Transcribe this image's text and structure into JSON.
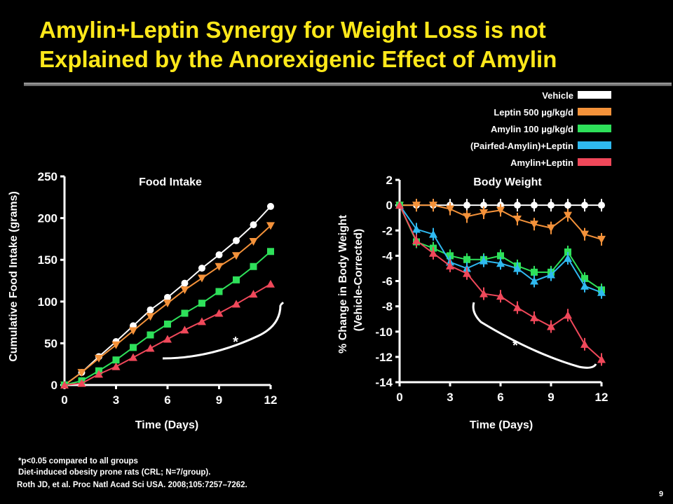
{
  "title_line1": "Amylin+Leptin Synergy for Weight Loss is not",
  "title_line2": "Explained by the Anorexigenic Effect of Amylin",
  "legend": [
    {
      "label": "Vehicle",
      "color": "#FFFFFF"
    },
    {
      "label": "Leptin 500 µg/kg/d",
      "color": "#F4923A"
    },
    {
      "label": "Amylin 100 µg/kg/d",
      "color": "#2EE05A"
    },
    {
      "label": "(Pairfed-Amylin)+Leptin",
      "color": "#2FB9F0"
    },
    {
      "label": "Amylin+Leptin",
      "color": "#F0485A"
    }
  ],
  "chart_data": [
    {
      "type": "line",
      "title": "Food Intake",
      "xlabel": "Time (Days)",
      "ylabel": "Cumulative Food Intake (grams)",
      "xlim": [
        0,
        12
      ],
      "ylim": [
        0,
        250
      ],
      "xticks": [
        "0",
        "3",
        "6",
        "9",
        "12"
      ],
      "yticks": [
        "0",
        "50",
        "100",
        "150",
        "200",
        "250"
      ],
      "annotation": "*",
      "x": [
        0,
        1,
        2,
        3,
        4,
        5,
        6,
        7,
        8,
        9,
        10,
        11,
        12
      ],
      "series": [
        {
          "name": "Vehicle",
          "marker": "circle",
          "color": "#FFFFFF",
          "values": [
            0,
            15,
            34,
            52,
            71,
            90,
            105,
            122,
            140,
            156,
            173,
            192,
            214
          ]
        },
        {
          "name": "Leptin 500 µg/kg/d",
          "marker": "triangle-down",
          "color": "#F4923A",
          "values": [
            0,
            15,
            32,
            48,
            65,
            82,
            98,
            114,
            128,
            142,
            155,
            172,
            191
          ]
        },
        {
          "name": "Amylin 100 µg/kg/d",
          "marker": "square",
          "color": "#2EE05A",
          "values": [
            0,
            5,
            17,
            30,
            45,
            60,
            73,
            86,
            98,
            112,
            126,
            142,
            160
          ]
        },
        {
          "name": "Amylin+Leptin",
          "marker": "triangle-up",
          "color": "#F0485A",
          "values": [
            0,
            2,
            13,
            22,
            33,
            44,
            55,
            66,
            76,
            86,
            97,
            109,
            121
          ]
        }
      ]
    },
    {
      "type": "line",
      "title": "Body Weight",
      "xlabel": "Time (Days)",
      "ylabel_line1": "% Change in Body Weight",
      "ylabel_line2": "(Vehicle-Corrected)",
      "xlim": [
        0,
        12
      ],
      "ylim": [
        -14,
        2
      ],
      "xticks": [
        "0",
        "3",
        "6",
        "9",
        "12"
      ],
      "yticks": [
        "2",
        "0",
        "-2",
        "-4",
        "-6",
        "-8",
        "-10",
        "-12",
        "-14"
      ],
      "annotation": "*",
      "x": [
        0,
        1,
        2,
        3,
        4,
        5,
        6,
        7,
        8,
        9,
        10,
        11,
        12
      ],
      "series": [
        {
          "name": "Vehicle",
          "marker": "circle",
          "color": "#FFFFFF",
          "values": [
            0,
            0,
            0,
            0,
            0,
            0,
            0,
            0,
            0,
            0,
            0,
            0,
            0
          ]
        },
        {
          "name": "Leptin 500 µg/kg/d",
          "marker": "triangle-down",
          "color": "#F4923A",
          "values": [
            0,
            0,
            0,
            -0.3,
            -0.9,
            -0.6,
            -0.4,
            -1.1,
            -1.5,
            -1.8,
            -0.8,
            -2.3,
            -2.7
          ]
        },
        {
          "name": "Amylin 100 µg/kg/d",
          "marker": "square",
          "color": "#2EE05A",
          "values": [
            0,
            -2.9,
            -3.4,
            -4.0,
            -4.3,
            -4.3,
            -4.0,
            -4.8,
            -5.3,
            -5.3,
            -3.7,
            -5.8,
            -6.7
          ]
        },
        {
          "name": "(Pairfed-Amylin)+Leptin",
          "marker": "triangle-up",
          "color": "#2FB9F0",
          "values": [
            0,
            -1.9,
            -2.3,
            -4.5,
            -5.0,
            -4.4,
            -4.6,
            -5.0,
            -6.0,
            -5.5,
            -4.2,
            -6.4,
            -6.9
          ]
        },
        {
          "name": "Amylin+Leptin",
          "marker": "triangle-up",
          "color": "#F0485A",
          "values": [
            0,
            -2.8,
            -3.8,
            -4.8,
            -5.4,
            -7.0,
            -7.2,
            -8.1,
            -8.9,
            -9.6,
            -8.7,
            -11.0,
            -12.2
          ]
        }
      ]
    }
  ],
  "footnotes": {
    "line1": "*p<0.05 compared to all groups",
    "line2": "Diet-induced obesity prone rats (CRL; N=7/group).",
    "line3": "Roth JD, et al. Proc Natl Acad Sci USA. 2008;105:7257–7262."
  },
  "page_number": "9"
}
